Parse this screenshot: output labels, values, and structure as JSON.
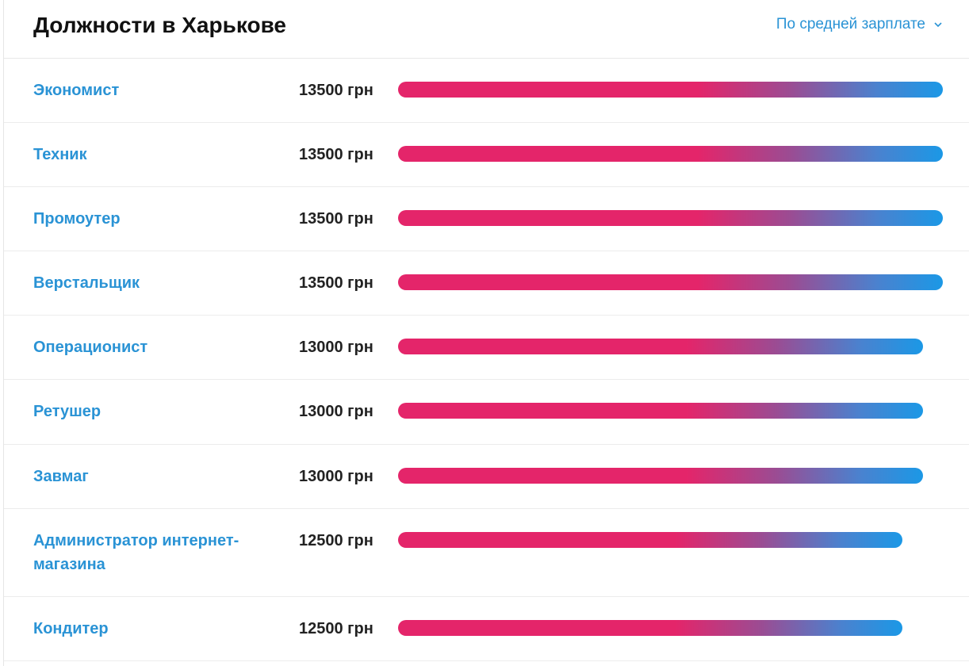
{
  "header": {
    "title": "Должности в Харькове",
    "sort_label": "По средней зарплате",
    "sort_icon": "chevron-down-icon"
  },
  "colors": {
    "link": "#2a93d5",
    "bar_start": "#e4256a",
    "bar_end": "#1b98e6"
  },
  "bar_max_value": 13500,
  "jobs": [
    {
      "title": "Экономист",
      "salary_text": "13500 грн",
      "salary": 13500
    },
    {
      "title": "Техник",
      "salary_text": "13500 грн",
      "salary": 13500
    },
    {
      "title": "Промоутер",
      "salary_text": "13500 грн",
      "salary": 13500
    },
    {
      "title": "Верстальщик",
      "salary_text": "13500 грн",
      "salary": 13500
    },
    {
      "title": "Операционист",
      "salary_text": "13000 грн",
      "salary": 13000
    },
    {
      "title": "Ретушер",
      "salary_text": "13000 грн",
      "salary": 13000
    },
    {
      "title": "Завмаг",
      "salary_text": "13000 грн",
      "salary": 13000
    },
    {
      "title": "Администратор интернет-магазина",
      "salary_text": "12500 грн",
      "salary": 12500
    },
    {
      "title": "Кондитер",
      "salary_text": "12500 грн",
      "salary": 12500
    }
  ]
}
